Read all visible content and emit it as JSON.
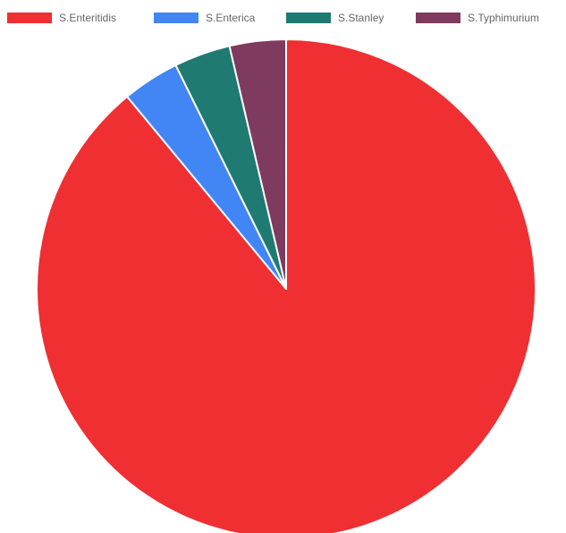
{
  "chart_data": {
    "type": "pie",
    "categories": [
      "S.Enteritidis",
      "S.Enterica",
      "S.Stanley",
      "S.Typhimurium"
    ],
    "values": [
      89,
      3.7,
      3.65,
      3.65
    ],
    "colors": [
      "#ef2f32",
      "#4285f4",
      "#1f7a72",
      "#7f3a5f"
    ],
    "legend": "top",
    "start": "12 o'clock",
    "direction": "clockwise",
    "title": ""
  }
}
